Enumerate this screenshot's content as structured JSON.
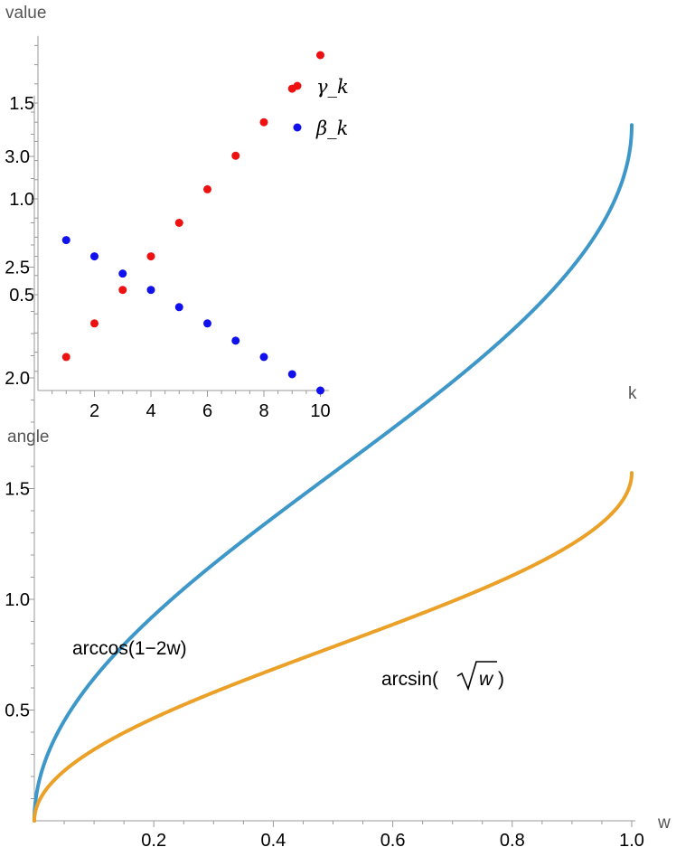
{
  "chart_data": [
    {
      "type": "scatter",
      "title": "",
      "xlabel": "k",
      "ylabel": "value",
      "xlim": [
        0,
        10.3
      ],
      "ylim": [
        0,
        1.85
      ],
      "xticks": [
        "2",
        "4",
        "6",
        "8",
        "10"
      ],
      "yticks": [
        "0.5",
        "1.0",
        "1.5"
      ],
      "x": [
        1,
        2,
        3,
        4,
        5,
        6,
        7,
        8,
        9,
        10
      ],
      "series": [
        {
          "name": "γ_k",
          "color": "#ee1111",
          "values": [
            0.175,
            0.35,
            0.525,
            0.7,
            0.875,
            1.05,
            1.225,
            1.4,
            1.575,
            1.75
          ]
        },
        {
          "name": "β_k",
          "color": "#1111ee",
          "values": [
            0.785,
            0.7,
            0.61,
            0.525,
            0.435,
            0.35,
            0.26,
            0.175,
            0.085,
            0.0
          ]
        }
      ],
      "legend": {
        "position": "top-center",
        "entries": [
          "γ_k",
          "β_k"
        ]
      }
    },
    {
      "type": "line",
      "title": "",
      "xlabel": "w",
      "ylabel": "angle",
      "xlim": [
        0,
        1.0
      ],
      "ylim": [
        0,
        3.25
      ],
      "xticks": [
        "0.2",
        "0.4",
        "0.6",
        "0.8",
        "1.0"
      ],
      "yticks": [
        "0.5",
        "1.0",
        "1.5",
        "2.0",
        "2.5",
        "3.0"
      ],
      "series": [
        {
          "name": "arccos(1−2w)",
          "color": "#3d97c9",
          "function": "arccos(1-2w)"
        },
        {
          "name": "arcsin(√w)",
          "color": "#eba127",
          "function": "arcsin(sqrt(w))"
        }
      ],
      "annotations": {
        "arccos": "arccos(1−2w)",
        "arcsin_prefix": "arcsin(",
        "arcsin_radicand": "w",
        "arcsin_suffix": ")"
      }
    }
  ]
}
